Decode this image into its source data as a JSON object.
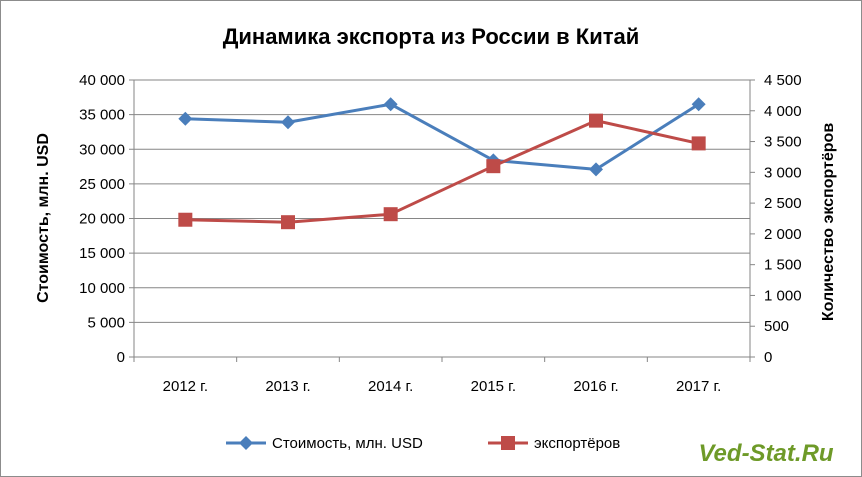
{
  "chart_data": {
    "type": "line",
    "title": "Динамика экспорта из России в Китай",
    "categories": [
      "2012 г.",
      "2013 г.",
      "2014 г.",
      "2015 г.",
      "2016 г.",
      "2017 г."
    ],
    "ylabel": "Стоимость, млн. USD",
    "y2label": "Количество экспортёров",
    "ylim": [
      0,
      40000
    ],
    "y2lim": [
      0,
      4500
    ],
    "yticks": [
      "0",
      "5 000",
      "10 000",
      "15 000",
      "20 000",
      "25 000",
      "30 000",
      "35 000",
      "40 000"
    ],
    "y2ticks": [
      "0",
      "500",
      "1 000",
      "1 500",
      "2 000",
      "2 500",
      "3 000",
      "3 500",
      "4 000",
      "4 500"
    ],
    "grid": true,
    "legend_position": "bottom",
    "series": [
      {
        "name": "Стоимость, млн. USD",
        "axis": "left",
        "marker": "diamond",
        "color": "#4a7ebb",
        "values": [
          34400,
          33900,
          36500,
          28400,
          27100,
          36500
        ]
      },
      {
        "name": "экспортёров",
        "axis": "right",
        "marker": "square",
        "color": "#be4b48",
        "values": [
          2230,
          2190,
          2320,
          3100,
          3840,
          3470
        ]
      }
    ]
  },
  "watermark": {
    "text": "Ved-Stat.Ru",
    "color": "#6e9a28"
  }
}
